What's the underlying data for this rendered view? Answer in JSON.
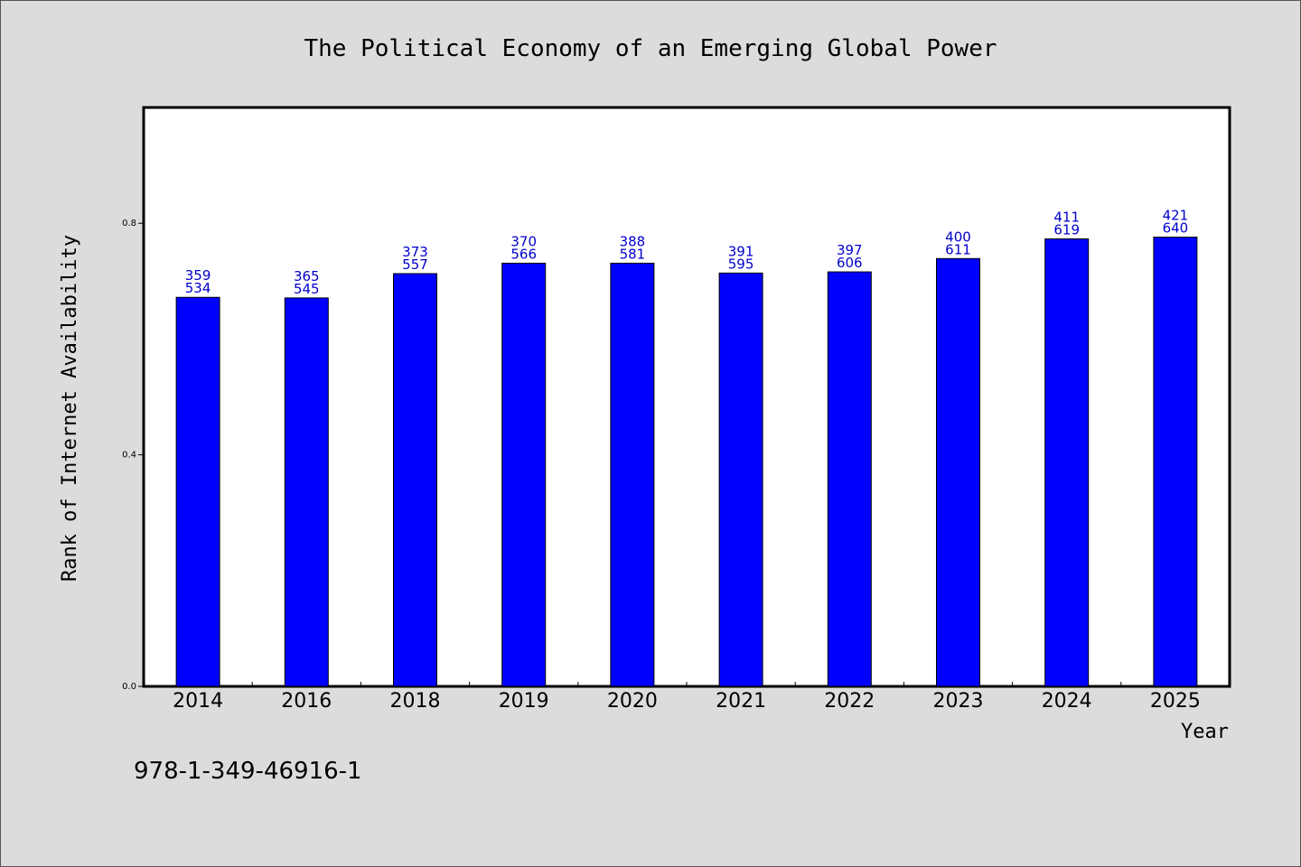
{
  "chart_data": {
    "type": "bar",
    "title": "The Political Economy of an Emerging Global Power",
    "xlabel": "Year",
    "ylabel": "Rank of Internet Availability",
    "categories": [
      "2014",
      "2016",
      "2018",
      "2019",
      "2020",
      "2021",
      "2022",
      "2023",
      "2024",
      "2025"
    ],
    "values": [
      0.672,
      0.671,
      0.713,
      0.731,
      0.731,
      0.714,
      0.716,
      0.739,
      0.773,
      0.776
    ],
    "labels_top": [
      "359",
      "365",
      "373",
      "370",
      "388",
      "391",
      "397",
      "400",
      "411",
      "421"
    ],
    "labels_bottom": [
      "534",
      "545",
      "557",
      "566",
      "581",
      "595",
      "606",
      "611",
      "619",
      "640"
    ],
    "ylim": [
      0,
      1.0
    ],
    "yticks": [
      0.0,
      0.4,
      0.8
    ],
    "ytick_labels": [
      "0.0",
      "0.4",
      "0.8"
    ],
    "grid": false,
    "legend": "none",
    "colors": {
      "bar": "#0000ff",
      "bar_label": "#0000cc",
      "plot_bg": "#ffffff",
      "page_bg": "#dcdcdc"
    }
  },
  "footer": {
    "isbn": "978-1-349-46916-1"
  }
}
